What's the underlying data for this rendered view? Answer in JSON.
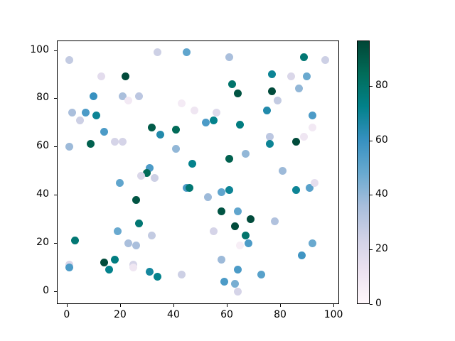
{
  "figure": {
    "background": "#ffffff",
    "title": ""
  },
  "chart_data": {
    "type": "scatter",
    "title": "",
    "xlabel": "",
    "ylabel": "",
    "grid": false,
    "x_ticks": [
      0,
      20,
      40,
      60,
      80,
      100
    ],
    "y_ticks": [
      0,
      20,
      40,
      60,
      80,
      100
    ],
    "xlim": [
      -3.7,
      102.1
    ],
    "ylim": [
      -5.3,
      104.0
    ],
    "marker_diameter_px": 11,
    "colormap": {
      "name": "PuBuGn",
      "vmin": 0,
      "vmax": 96.6,
      "stops": [
        {
          "t": 0.0,
          "color": "#fff7fb"
        },
        {
          "t": 0.125,
          "color": "#ece2f0"
        },
        {
          "t": 0.25,
          "color": "#d0d1e6"
        },
        {
          "t": 0.375,
          "color": "#a6bddb"
        },
        {
          "t": 0.5,
          "color": "#67a9cf"
        },
        {
          "t": 0.625,
          "color": "#3690c0"
        },
        {
          "t": 0.75,
          "color": "#02818a"
        },
        {
          "t": 0.875,
          "color": "#016c59"
        },
        {
          "t": 1.0,
          "color": "#014636"
        }
      ]
    },
    "colorbar": {
      "ticks": [
        0,
        20,
        40,
        60,
        80
      ]
    },
    "points": [
      [
        1,
        96,
        28
      ],
      [
        34,
        99,
        25
      ],
      [
        13,
        89,
        16
      ],
      [
        22,
        89,
        95
      ],
      [
        10,
        81,
        60
      ],
      [
        21,
        81,
        35
      ],
      [
        23,
        79,
        8
      ],
      [
        27,
        81,
        30
      ],
      [
        2,
        74,
        35
      ],
      [
        7,
        74,
        55
      ],
      [
        11,
        73,
        70
      ],
      [
        5,
        71,
        25
      ],
      [
        14,
        66,
        55
      ],
      [
        32,
        68,
        90
      ],
      [
        45,
        99,
        50
      ],
      [
        61,
        97,
        35
      ],
      [
        62,
        86,
        80
      ],
      [
        64,
        82,
        92
      ],
      [
        43,
        78,
        7
      ],
      [
        48,
        75,
        10
      ],
      [
        56,
        74,
        18
      ],
      [
        52,
        70,
        55
      ],
      [
        55,
        71,
        72
      ],
      [
        41,
        67,
        85
      ],
      [
        65,
        69,
        75
      ],
      [
        89,
        97,
        78
      ],
      [
        97,
        96,
        25
      ],
      [
        77,
        90,
        70
      ],
      [
        84,
        89,
        20
      ],
      [
        90,
        89,
        48
      ],
      [
        77,
        83,
        95
      ],
      [
        87,
        84,
        40
      ],
      [
        79,
        79,
        28
      ],
      [
        75,
        75,
        65
      ],
      [
        92,
        73,
        55
      ],
      [
        1,
        60,
        38
      ],
      [
        9,
        61,
        88
      ],
      [
        18,
        62,
        22
      ],
      [
        21,
        62,
        22
      ],
      [
        31,
        51,
        55
      ],
      [
        30,
        49,
        85
      ],
      [
        28,
        48,
        20
      ],
      [
        20,
        45,
        50
      ],
      [
        26,
        38,
        92
      ],
      [
        35,
        65,
        65
      ],
      [
        41,
        59,
        40
      ],
      [
        47,
        53,
        72
      ],
      [
        61,
        55,
        88
      ],
      [
        67,
        57,
        40
      ],
      [
        33,
        47,
        25
      ],
      [
        45,
        43,
        55
      ],
      [
        46,
        43,
        78
      ],
      [
        53,
        39,
        38
      ],
      [
        58,
        41,
        50
      ],
      [
        61,
        42,
        70
      ],
      [
        58,
        33,
        92
      ],
      [
        64,
        33,
        50
      ],
      [
        92,
        68,
        8
      ],
      [
        89,
        64,
        10
      ],
      [
        86,
        62,
        95
      ],
      [
        76,
        64,
        30
      ],
      [
        76,
        61,
        70
      ],
      [
        81,
        50,
        38
      ],
      [
        86,
        42,
        70
      ],
      [
        91,
        43,
        52
      ],
      [
        93,
        45,
        15
      ],
      [
        27,
        28,
        78
      ],
      [
        19,
        25,
        48
      ],
      [
        3,
        21,
        78
      ],
      [
        32,
        23,
        28
      ],
      [
        23,
        20,
        35
      ],
      [
        26,
        19,
        35
      ],
      [
        14,
        12,
        95
      ],
      [
        18,
        13,
        75
      ],
      [
        16,
        9,
        72
      ],
      [
        1,
        11,
        20
      ],
      [
        1,
        10,
        55
      ],
      [
        25,
        11,
        22
      ],
      [
        25,
        10,
        10
      ],
      [
        31,
        8,
        68
      ],
      [
        34,
        6,
        72
      ],
      [
        63,
        27,
        95
      ],
      [
        69,
        30,
        95
      ],
      [
        55,
        25,
        22
      ],
      [
        67,
        23,
        80
      ],
      [
        65,
        19,
        5
      ],
      [
        68,
        20,
        55
      ],
      [
        58,
        13,
        38
      ],
      [
        43,
        7,
        25
      ],
      [
        64,
        9,
        55
      ],
      [
        59,
        4,
        55
      ],
      [
        63,
        3,
        45
      ],
      [
        64,
        0,
        22
      ],
      [
        78,
        29,
        33
      ],
      [
        73,
        7,
        52
      ],
      [
        88,
        15,
        58
      ],
      [
        92,
        20,
        48
      ]
    ]
  }
}
